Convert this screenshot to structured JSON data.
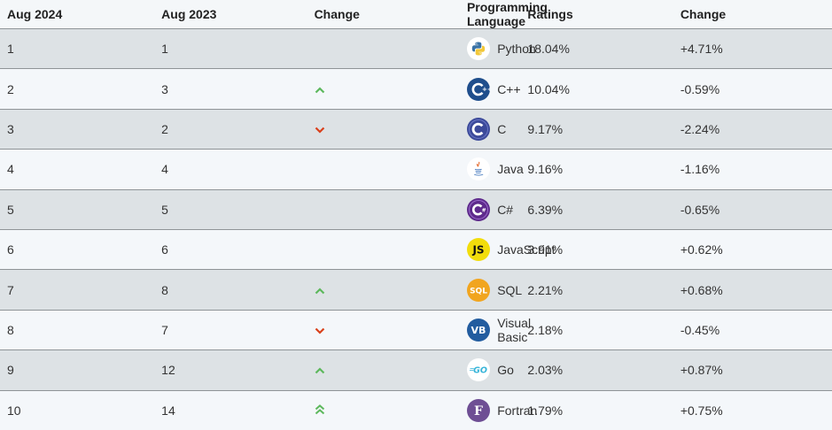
{
  "headers": {
    "aug2024": "Aug 2024",
    "aug2023": "Aug 2023",
    "change": "Change",
    "language": "Programming Language",
    "ratings": "Ratings",
    "change2": "Change"
  },
  "colors": {
    "up": "#5cb85c",
    "down": "#d9401b"
  },
  "rows": [
    {
      "rank2024": "1",
      "rank2023": "1",
      "trend": "none",
      "icon": "python-icon",
      "language": "Python",
      "rating": "18.04%",
      "change": "+4.71%"
    },
    {
      "rank2024": "2",
      "rank2023": "3",
      "trend": "up",
      "icon": "cpp-icon",
      "language": "C++",
      "rating": "10.04%",
      "change": "-0.59%"
    },
    {
      "rank2024": "3",
      "rank2023": "2",
      "trend": "down",
      "icon": "c-icon",
      "language": "C",
      "rating": "9.17%",
      "change": "-2.24%"
    },
    {
      "rank2024": "4",
      "rank2023": "4",
      "trend": "none",
      "icon": "java-icon",
      "language": "Java",
      "rating": "9.16%",
      "change": "-1.16%"
    },
    {
      "rank2024": "5",
      "rank2023": "5",
      "trend": "none",
      "icon": "csharp-icon",
      "language": "C#",
      "rating": "6.39%",
      "change": "-0.65%"
    },
    {
      "rank2024": "6",
      "rank2023": "6",
      "trend": "none",
      "icon": "javascript-icon",
      "language": "JavaScript",
      "rating": "3.91%",
      "change": "+0.62%"
    },
    {
      "rank2024": "7",
      "rank2023": "8",
      "trend": "up",
      "icon": "sql-icon",
      "language": "SQL",
      "rating": "2.21%",
      "change": "+0.68%"
    },
    {
      "rank2024": "8",
      "rank2023": "7",
      "trend": "down",
      "icon": "visual-basic-icon",
      "language": "Visual Basic",
      "rating": "2.18%",
      "change": "-0.45%"
    },
    {
      "rank2024": "9",
      "rank2023": "12",
      "trend": "up",
      "icon": "go-icon",
      "language": "Go",
      "rating": "2.03%",
      "change": "+0.87%"
    },
    {
      "rank2024": "10",
      "rank2023": "14",
      "trend": "up-double",
      "icon": "fortran-icon",
      "language": "Fortran",
      "rating": "1.79%",
      "change": "+0.75%"
    }
  ]
}
